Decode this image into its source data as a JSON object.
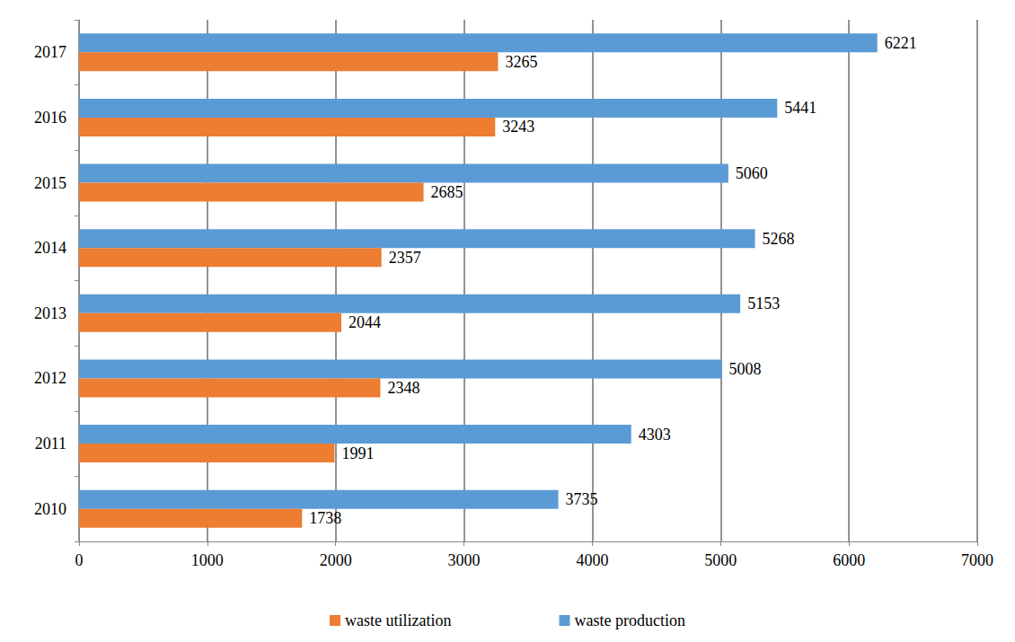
{
  "chart_data": {
    "type": "bar",
    "orientation": "horizontal",
    "categories": [
      "2010",
      "2011",
      "2012",
      "2013",
      "2014",
      "2015",
      "2016",
      "2017"
    ],
    "series": [
      {
        "name": "waste utilization",
        "color": "#ed7d31",
        "values": [
          1738,
          1991,
          2348,
          2044,
          2357,
          2685,
          3243,
          3265
        ]
      },
      {
        "name": "waste production",
        "color": "#5b9bd5",
        "values": [
          3735,
          4303,
          5008,
          5153,
          5268,
          5060,
          5441,
          6221
        ]
      }
    ],
    "xlim": [
      0,
      7000
    ],
    "xticks": [
      0,
      1000,
      2000,
      3000,
      4000,
      5000,
      6000,
      7000
    ],
    "grid": true,
    "data_labels": true,
    "legend": "bottom"
  }
}
